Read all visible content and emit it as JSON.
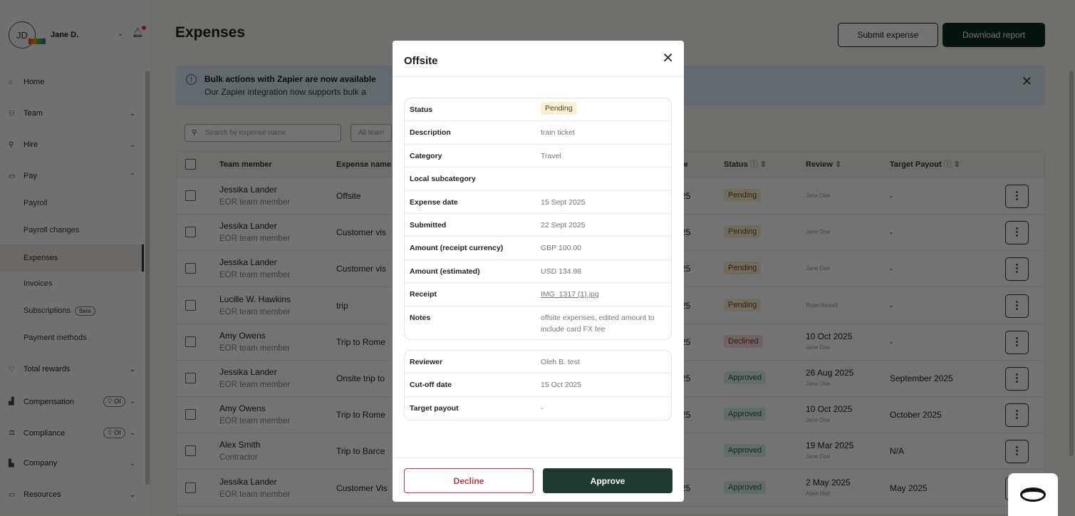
{
  "user": {
    "initials": "JD",
    "name": "Jane D."
  },
  "sidebar": {
    "items": [
      {
        "label": "Home",
        "icon": "home-icon",
        "glyph": "⌂"
      },
      {
        "label": "Team",
        "icon": "team-icon",
        "glyph": "⚇"
      },
      {
        "label": "Hire",
        "icon": "hire-icon",
        "glyph": "⚲"
      },
      {
        "label": "Pay",
        "icon": "pay-icon",
        "glyph": "▭"
      }
    ],
    "pay_sub": [
      "Payroll",
      "Payroll changes",
      "Expenses",
      "Invoices",
      "Subscriptions",
      "Payment methods"
    ],
    "beta_label": "Beta",
    "lower": [
      {
        "label": "Total rewards",
        "icon": "heart-icon",
        "glyph": "♡"
      },
      {
        "label": "Compensation",
        "icon": "compensation-icon",
        "glyph": "▟",
        "pill": "OI"
      },
      {
        "label": "Compliance",
        "icon": "compliance-icon",
        "glyph": "⚖",
        "pill": "OI"
      },
      {
        "label": "Company",
        "icon": "building-icon",
        "glyph": "▙"
      },
      {
        "label": "Resources",
        "icon": "folder-icon",
        "glyph": "▭"
      }
    ]
  },
  "page": {
    "title": "Expenses",
    "submit_label": "Submit expense",
    "download_label": "Download report"
  },
  "banner": {
    "title": "Bulk actions with Zapier are now available",
    "body": "Our Zapier integration now supports bulk a"
  },
  "filters": {
    "search_placeholder": "Search by expense name",
    "team_filter": "All team"
  },
  "table": {
    "headers": {
      "member": "Team member",
      "expense": "Expense name",
      "date": "te",
      "status": "Status",
      "review": "Review",
      "payout": "Target Payout"
    },
    "rows": [
      {
        "name": "Jessika Lander",
        "role": "EOR team member",
        "expense": "Offsite",
        "date": "25",
        "status": "Pending",
        "review_date": "",
        "reviewer": "Jane Doe",
        "payout": "-"
      },
      {
        "name": "Jessika Lander",
        "role": "EOR team member",
        "expense": "Customer vis",
        "date": "25",
        "status": "Pending",
        "review_date": "",
        "reviewer": "Jane Doe",
        "payout": "-"
      },
      {
        "name": "Jessika Lander",
        "role": "EOR team member",
        "expense": "Customer vis",
        "date": "25",
        "status": "Pending",
        "review_date": "",
        "reviewer": "Jane Doe",
        "payout": "-"
      },
      {
        "name": "Lucille W. Hawkins",
        "role": "EOR team member",
        "expense": "trip",
        "date": "25",
        "status": "Pending",
        "review_date": "",
        "reviewer": "Ryan Newell",
        "payout": "-"
      },
      {
        "name": "Amy Owens",
        "role": "EOR team member",
        "expense": "Trip to Rome",
        "date": "25",
        "status": "Declined",
        "review_date": "10 Oct 2025",
        "reviewer": "Jane Doe",
        "payout": "-"
      },
      {
        "name": "Jessika Lander",
        "role": "EOR team member",
        "expense": "Onsite trip to",
        "date": "25",
        "status": "Approved",
        "review_date": "26 Aug 2025",
        "reviewer": "Jane Doe",
        "payout": "September 2025"
      },
      {
        "name": "Amy Owens",
        "role": "EOR team member",
        "expense": "Trip to Rome",
        "date": "25",
        "status": "Approved",
        "review_date": "10 Oct 2025",
        "reviewer": "Jane Doe",
        "payout": "October 2025"
      },
      {
        "name": "Alex Smith",
        "role": "Contractor",
        "expense": "Trip to Barce",
        "date": "",
        "status": "Approved",
        "review_date": "19 Mar 2025",
        "reviewer": "Jane Doe",
        "payout": "N/A"
      },
      {
        "name": "Jessika Lander",
        "role": "EOR team member",
        "expense": "Customer Vis",
        "date": "25",
        "status": "Approved",
        "review_date": "2 May 2025",
        "reviewer": "Allan Hall",
        "payout": "May 2025"
      }
    ]
  },
  "status_colors": {
    "Pending": "#fbeed0",
    "Declined": "#f7dcdc",
    "Approved": "#d6efe6"
  },
  "modal": {
    "title": "Offsite",
    "details": [
      {
        "label": "Status",
        "value": "Pending"
      },
      {
        "label": "Description",
        "value": "train ticket"
      },
      {
        "label": "Category",
        "value": "Travel"
      },
      {
        "label": "Local subcategory",
        "value": ""
      },
      {
        "label": "Expense date",
        "value": "15 Sept 2025"
      },
      {
        "label": "Submitted",
        "value": "22 Sept 2025"
      },
      {
        "label": "Amount (receipt currency)",
        "value": "GBP 100.00"
      },
      {
        "label": "Amount (estimated)",
        "value": "USD 134.98"
      },
      {
        "label": "Receipt",
        "value": "IMG_1317 (1).jpg"
      },
      {
        "label": "Notes",
        "value": "offsite expenses, edited amount to include card FX fee"
      }
    ],
    "review": [
      {
        "label": "Reviewer",
        "value": "Oleh B. test"
      },
      {
        "label": "Cut-off date",
        "value": "15 Oct 2025"
      },
      {
        "label": "Target payout",
        "value": "-"
      }
    ],
    "decline_label": "Decline",
    "approve_label": "Approve"
  }
}
